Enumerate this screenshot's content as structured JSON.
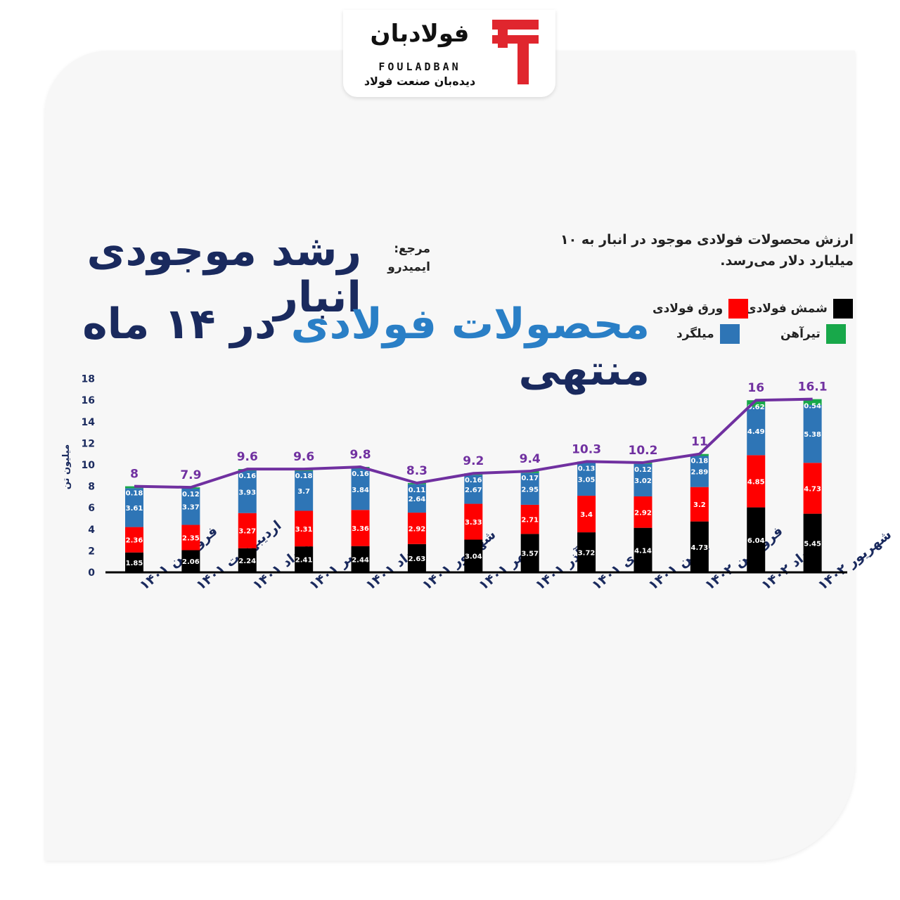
{
  "logo": {
    "name_fa": "فولادبان",
    "name_en": "FOULADBAN",
    "tagline": "دیده‌بان صنعت فولاد"
  },
  "header": {
    "title_line1": "رشد موجودی انبار",
    "title_line2_highlight": "محصولات فولادی",
    "title_line2_rest": "در ۱۴ ماه منتهی",
    "source_label": "مرجع:",
    "source_value": "ایمیدرو",
    "note": "ارزش محصولات فولادی موجود در انبار به ۱۰ میلیارد دلار می‌رسد."
  },
  "legend": {
    "billet": "شمش فولادی",
    "sheet": "ورق فولادی",
    "beam": "تیرآهن",
    "rebar": "میلگرد"
  },
  "colors": {
    "billet": "#000000",
    "sheet": "#ff0000",
    "rebar": "#2e75b6",
    "beam": "#18a84a",
    "total_line": "#7030a0",
    "axis_text": "#1a2a5e"
  },
  "chart_data": {
    "type": "bar",
    "stacked": true,
    "ylabel": "میلیون تن",
    "ylim": [
      0,
      18
    ],
    "yticks": [
      0,
      2,
      4,
      6,
      8,
      10,
      12,
      14,
      16,
      18
    ],
    "categories": [
      "فروردین ۱۴۰۱",
      "اردیبهشت ۱۴۰۱",
      "خرداد ۱۴۰۱",
      "تیر ۱۴۰۱",
      "مرداد ۱۴۰۱",
      "شهریور ۱۴۰۱",
      "مهر ۱۴۰۱",
      "آذر ۱۴۰۱",
      "دی ۱۴۰۱",
      "بهمن ۱۴۰۱",
      "فروردین ۱۴۰۲",
      "خرداد ۱۴۰۲",
      "شهریور ۱۴۰۲"
    ],
    "series": [
      {
        "name": "شمش فولادی",
        "key": "billet",
        "values": [
          1.85,
          2.06,
          2.24,
          2.41,
          2.44,
          2.63,
          3.04,
          3.57,
          3.72,
          4.14,
          4.73,
          6.04,
          5.45
        ]
      },
      {
        "name": "ورق فولادی",
        "key": "sheet",
        "values": [
          2.36,
          2.35,
          3.27,
          3.31,
          3.36,
          2.92,
          3.33,
          2.71,
          3.4,
          2.92,
          3.2,
          4.85,
          4.73
        ]
      },
      {
        "name": "میلگرد",
        "key": "rebar",
        "values": [
          3.61,
          3.37,
          3.93,
          3.7,
          3.84,
          2.64,
          2.67,
          2.95,
          3.05,
          3.02,
          2.89,
          4.49,
          5.38
        ]
      },
      {
        "name": "تیرآهن",
        "key": "beam",
        "values": [
          0.18,
          0.12,
          0.16,
          0.18,
          0.16,
          0.11,
          0.16,
          0.17,
          0.13,
          0.12,
          0.18,
          0.62,
          0.54
        ]
      }
    ],
    "totals": [
      8,
      7.9,
      9.6,
      9.6,
      9.8,
      8.3,
      9.2,
      9.4,
      10.3,
      10.2,
      11,
      16,
      16.1
    ]
  }
}
